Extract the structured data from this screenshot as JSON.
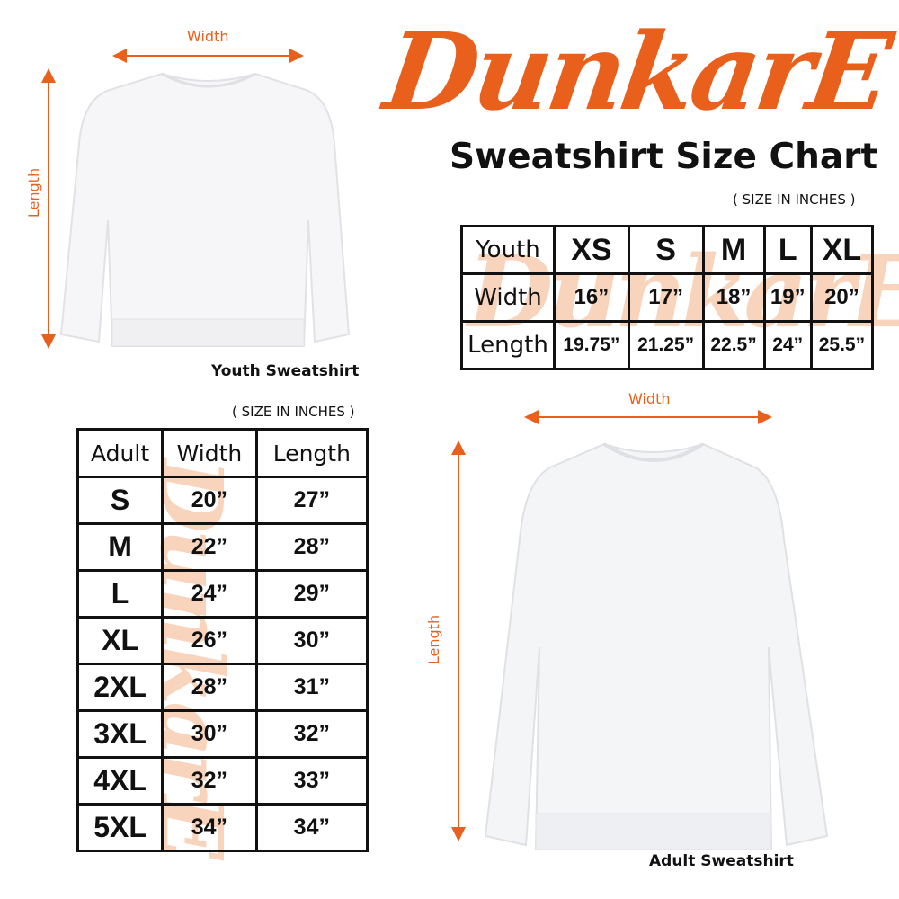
{
  "brand": {
    "logo_text": "DunkarE",
    "accent": "#e8601c"
  },
  "title": "Sweatshirt Size Chart",
  "youth": {
    "note": "( SIZE IN INCHES )",
    "image_label": "Youth Sweatshirt",
    "width_label": "Width",
    "length_label": "Length",
    "header": [
      "Youth",
      "XS",
      "S",
      "M",
      "L",
      "XL"
    ],
    "rows": [
      [
        "Width",
        "16”",
        "17”",
        "18”",
        "19”",
        "20”"
      ],
      [
        "Length",
        "19.75”",
        "21.25”",
        "22.5”",
        "24”",
        "25.5”"
      ]
    ]
  },
  "adult": {
    "note": "( SIZE IN INCHES )",
    "image_label": "Adult Sweatshirt",
    "width_label": "Width",
    "length_label": "Length",
    "header": [
      "Adult",
      "Width",
      "Length"
    ],
    "rows": [
      [
        "S",
        "20”",
        "27”"
      ],
      [
        "M",
        "22”",
        "28”"
      ],
      [
        "L",
        "24”",
        "29”"
      ],
      [
        "XL",
        "26”",
        "30”"
      ],
      [
        "2XL",
        "28”",
        "31”"
      ],
      [
        "3XL",
        "30”",
        "32”"
      ],
      [
        "4XL",
        "32”",
        "33”"
      ],
      [
        "5XL",
        "34”",
        "34”"
      ]
    ]
  }
}
